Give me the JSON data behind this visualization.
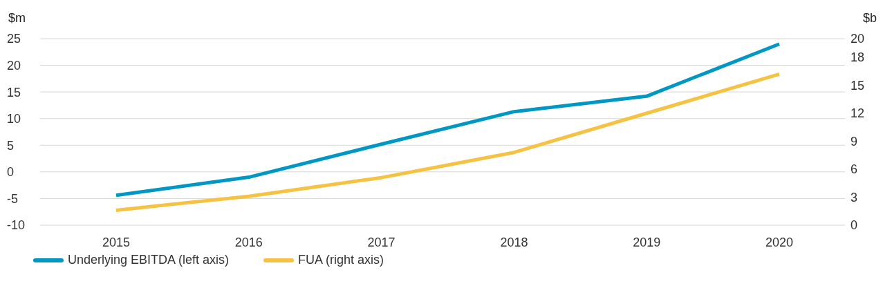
{
  "chart_data": {
    "type": "line",
    "ylabel": "$m",
    "y2label": "$b",
    "categories": [
      "2015",
      "2016",
      "2017",
      "2018",
      "2019",
      "2020"
    ],
    "series": [
      {
        "name": "Underlying EBITDA (left axis)",
        "color": "#0098c3",
        "values": [
          -4.4,
          -1.0,
          5.2,
          11.3,
          14.2,
          24.0
        ]
      },
      {
        "name": "FUA (right axis)",
        "color": "#f6c244",
        "axis": "y2",
        "values": [
          1.6,
          3.1,
          5.1,
          7.8,
          12.0,
          16.2
        ]
      }
    ],
    "ylim": [
      -10,
      25
    ],
    "yticks": [
      -10,
      -5,
      0,
      5,
      10,
      15,
      20,
      25
    ],
    "y2lim": [
      0,
      20
    ],
    "y2ticks": [
      0,
      3,
      6,
      9,
      12,
      15,
      18,
      20
    ],
    "grid": "y",
    "legend": "bottom left",
    "marker": "none",
    "line_style": "solid"
  }
}
